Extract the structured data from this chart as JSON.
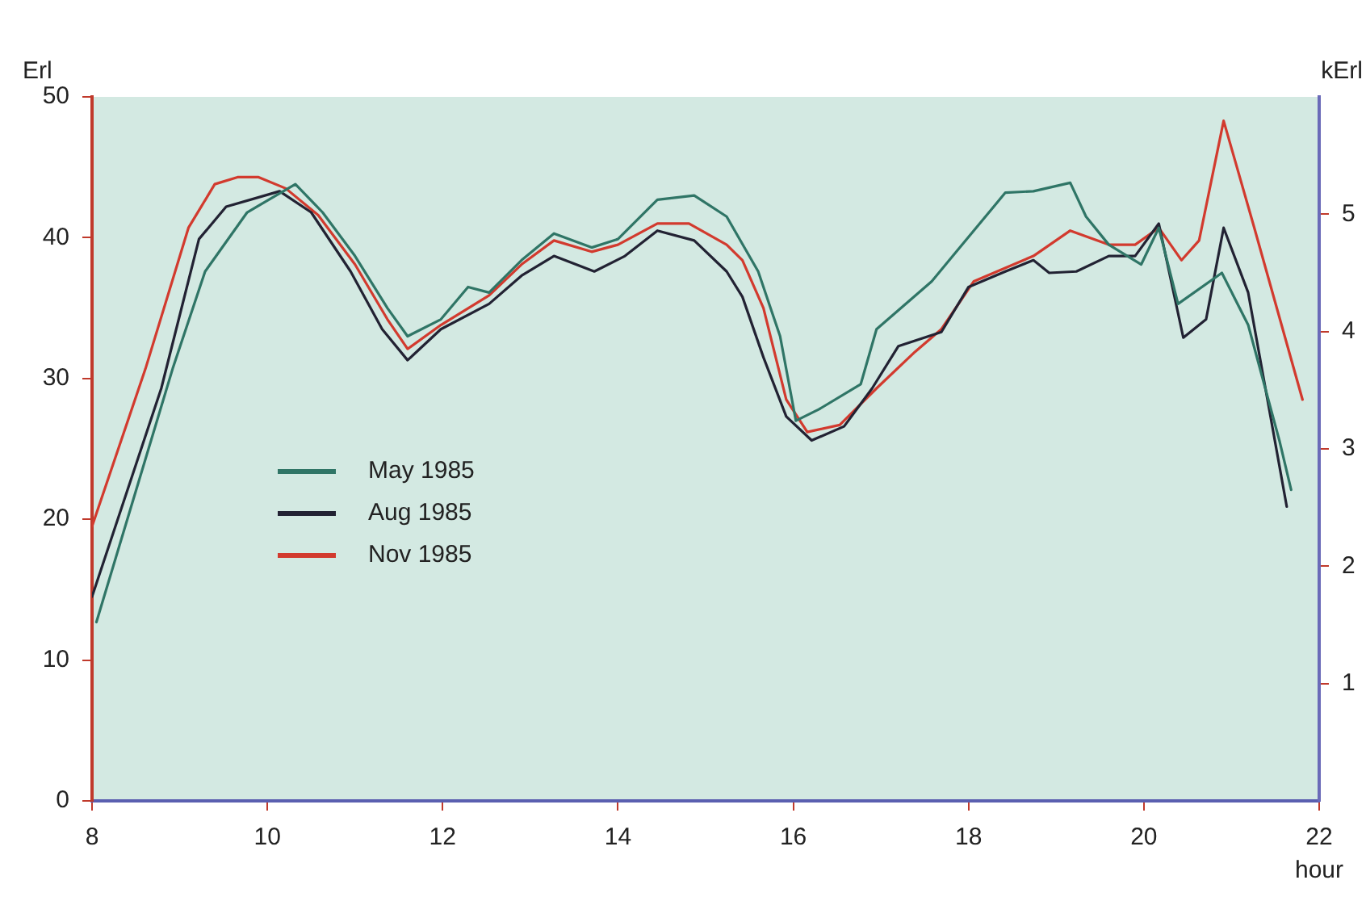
{
  "chart_data": {
    "type": "line",
    "xlabel": "hour",
    "ylabel": "Erl",
    "y2label": "kErl",
    "xlim": [
      8,
      22
    ],
    "xticks": [
      8,
      10,
      12,
      14,
      16,
      18,
      20,
      22
    ],
    "ylim": [
      0,
      50
    ],
    "yticks": [
      0,
      10,
      20,
      30,
      40,
      50
    ],
    "y2lim": [
      0,
      6
    ],
    "y2ticks": [
      1,
      2,
      3,
      4,
      5
    ],
    "grid": false,
    "legend": "left",
    "marker": "none",
    "line_style": "solid",
    "series": [
      {
        "name": "May 1985",
        "color": "#2f7566",
        "x": [
          8.05,
          8.92,
          9.29,
          9.77,
          10.32,
          10.63,
          11.0,
          11.37,
          11.6,
          11.98,
          12.29,
          12.53,
          12.9,
          13.27,
          13.7,
          14.0,
          14.45,
          14.87,
          15.24,
          15.6,
          15.85,
          16.03,
          16.29,
          16.77,
          16.95,
          17.58,
          17.82,
          18.42,
          18.74,
          19.16,
          19.34,
          19.6,
          19.97,
          20.17,
          20.39,
          20.89,
          21.19,
          21.55,
          21.68
        ],
        "values": [
          12.7,
          30.7,
          37.6,
          41.8,
          43.8,
          41.8,
          38.7,
          35.0,
          33.0,
          34.2,
          36.5,
          36.1,
          38.4,
          40.3,
          39.3,
          39.9,
          42.7,
          43.0,
          41.5,
          37.6,
          33.0,
          27.0,
          27.8,
          29.6,
          33.5,
          36.9,
          38.7,
          43.2,
          43.3,
          43.9,
          41.5,
          39.5,
          38.1,
          40.7,
          35.3,
          37.5,
          33.8,
          25.5,
          22.1
        ]
      },
      {
        "name": "Aug 1985",
        "color": "#222233",
        "x": [
          8.0,
          8.79,
          9.22,
          9.53,
          10.14,
          10.5,
          10.95,
          11.31,
          11.6,
          11.98,
          12.53,
          12.9,
          13.27,
          13.73,
          14.08,
          14.45,
          14.87,
          15.24,
          15.42,
          15.66,
          15.92,
          16.21,
          16.58,
          16.9,
          17.2,
          17.69,
          18.0,
          18.42,
          18.74,
          18.92,
          19.23,
          19.6,
          19.9,
          20.17,
          20.45,
          20.71,
          20.91,
          21.19,
          21.63
        ],
        "values": [
          14.5,
          29.3,
          39.9,
          42.2,
          43.3,
          41.8,
          37.6,
          33.5,
          31.3,
          33.5,
          35.3,
          37.3,
          38.7,
          37.6,
          38.7,
          40.5,
          39.8,
          37.6,
          35.8,
          31.5,
          27.3,
          25.6,
          26.6,
          29.3,
          32.3,
          33.3,
          36.5,
          37.6,
          38.4,
          37.5,
          37.6,
          38.7,
          38.7,
          41.0,
          32.9,
          34.2,
          40.7,
          36.1,
          20.9
        ]
      },
      {
        "name": "Nov 1985",
        "color": "#d23a2e",
        "x": [
          8.0,
          8.61,
          9.1,
          9.4,
          9.66,
          9.9,
          10.21,
          10.58,
          11.0,
          11.37,
          11.6,
          11.98,
          12.53,
          12.9,
          13.27,
          13.7,
          14.0,
          14.45,
          14.81,
          15.24,
          15.42,
          15.66,
          15.92,
          16.16,
          16.53,
          16.95,
          17.39,
          17.69,
          18.06,
          18.74,
          19.16,
          19.6,
          19.9,
          20.17,
          20.43,
          20.63,
          20.91,
          21.26,
          21.81
        ],
        "values": [
          19.5,
          30.7,
          40.7,
          43.8,
          44.3,
          44.3,
          43.5,
          41.6,
          38.1,
          34.2,
          32.1,
          33.8,
          35.9,
          38.1,
          39.8,
          39.0,
          39.5,
          41.0,
          41.0,
          39.5,
          38.4,
          35.0,
          28.5,
          26.2,
          26.7,
          29.3,
          31.9,
          33.5,
          36.9,
          38.7,
          40.5,
          39.5,
          39.5,
          40.7,
          38.4,
          39.8,
          48.3,
          40.7,
          28.5
        ]
      }
    ]
  }
}
